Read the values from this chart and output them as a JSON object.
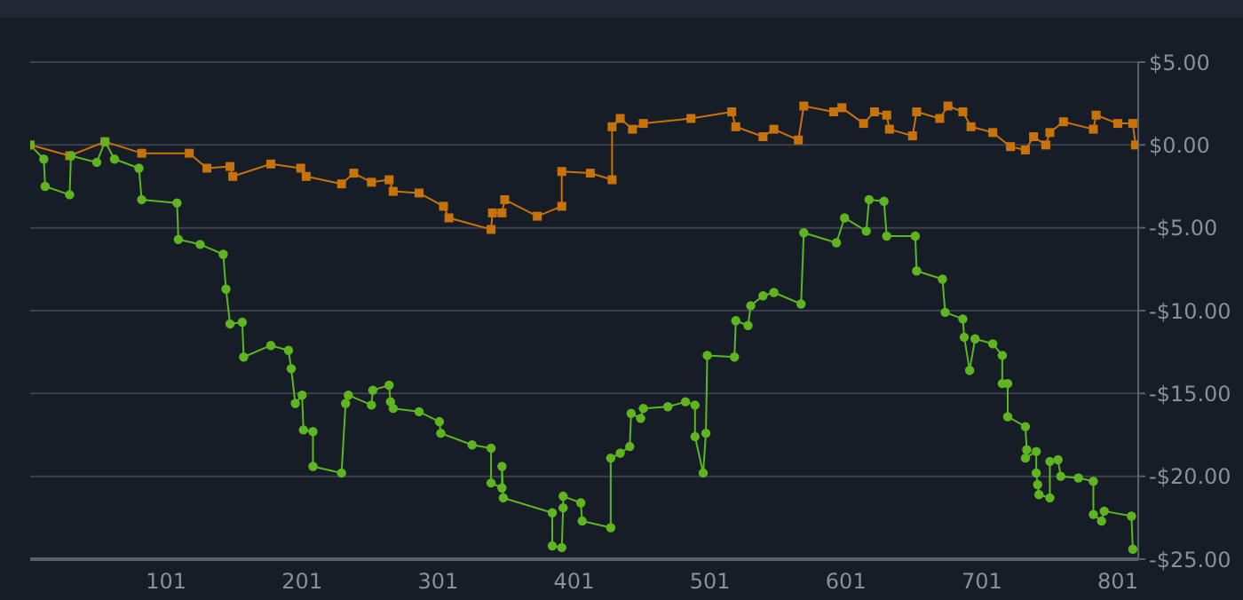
{
  "chart_data": {
    "type": "line",
    "xlim": [
      1,
      816
    ],
    "xticks": [
      101,
      201,
      301,
      401,
      501,
      601,
      701,
      801
    ],
    "ylim": [
      -25,
      5
    ],
    "yticks": [
      {
        "value": 5,
        "label": "$5.00"
      },
      {
        "value": 0,
        "label": "$0.00"
      },
      {
        "value": -5,
        "label": "-$5.00"
      },
      {
        "value": -10,
        "label": "-$10.00"
      },
      {
        "value": -15,
        "label": "-$15.00"
      },
      {
        "value": -20,
        "label": "-$20.00"
      },
      {
        "value": -25,
        "label": "-$25.00"
      }
    ],
    "grid": "y",
    "legend": false,
    "line_style": "solid",
    "series": [
      {
        "color": "#c8720a",
        "marker": "square",
        "x": [
          1,
          30,
          56,
          83,
          118,
          131,
          148,
          150,
          178,
          200,
          204,
          230,
          239,
          252,
          265,
          268,
          287,
          305,
          309,
          340,
          341,
          348,
          350,
          374,
          392,
          392,
          413,
          429,
          429,
          435,
          444,
          452,
          487,
          517,
          520,
          540,
          548,
          566,
          570,
          592,
          598,
          614,
          622,
          631,
          633,
          650,
          653,
          670,
          676,
          687,
          693,
          709,
          722,
          733,
          739,
          748,
          751,
          761,
          783,
          785,
          801,
          812,
          814
        ],
        "values": [
          0,
          -0.65,
          0.2,
          -0.5,
          -0.5,
          -1.4,
          -1.3,
          -1.9,
          -1.15,
          -1.4,
          -1.9,
          -2.35,
          -1.7,
          -2.25,
          -2.1,
          -2.8,
          -2.9,
          -3.7,
          -4.4,
          -5.1,
          -4.1,
          -4.1,
          -3.3,
          -4.3,
          -3.7,
          -1.6,
          -1.7,
          -2.1,
          1.1,
          1.6,
          0.95,
          1.3,
          1.6,
          2,
          1.1,
          0.5,
          0.95,
          0.3,
          2.35,
          2,
          2.25,
          1.3,
          2,
          1.8,
          0.95,
          0.55,
          2,
          1.6,
          2.35,
          2,
          1.1,
          0.75,
          -0.1,
          -0.3,
          0.5,
          0,
          0.75,
          1.4,
          0.95,
          1.8,
          1.3,
          1.3,
          0
        ]
      },
      {
        "color": "#5fb520",
        "marker": "circle",
        "x": [
          1,
          11,
          12,
          30,
          31,
          50,
          56,
          63,
          81,
          83,
          109,
          110,
          126,
          143,
          145,
          148,
          157,
          158,
          178,
          191,
          193,
          196,
          201,
          202,
          209,
          209,
          230,
          233,
          235,
          252,
          253,
          265,
          266,
          268,
          287,
          302,
          303,
          326,
          340,
          340,
          348,
          348,
          349,
          385,
          385,
          392,
          393,
          393,
          406,
          407,
          428,
          428,
          435,
          442,
          443,
          450,
          452,
          470,
          483,
          490,
          490,
          496,
          498,
          499,
          519,
          520,
          529,
          531,
          540,
          548,
          568,
          570,
          594,
          600,
          616,
          618,
          629,
          631,
          652,
          653,
          672,
          674,
          687,
          688,
          692,
          696,
          709,
          716,
          716,
          720,
          720,
          733,
          734,
          733,
          741,
          741,
          742,
          743,
          751,
          751,
          757,
          759,
          772,
          783,
          783,
          789,
          791,
          811,
          812
        ],
        "values": [
          0,
          -0.85,
          -2.5,
          -3,
          -0.65,
          -1.05,
          0.2,
          -0.85,
          -1.4,
          -3.3,
          -3.5,
          -5.7,
          -6,
          -6.6,
          -8.7,
          -10.8,
          -10.7,
          -12.8,
          -12.1,
          -12.4,
          -13.5,
          -15.6,
          -15.1,
          -17.2,
          -17.3,
          -19.4,
          -19.8,
          -15.6,
          -15.1,
          -15.7,
          -14.8,
          -14.5,
          -15.5,
          -15.9,
          -16.1,
          -16.7,
          -17.4,
          -18.1,
          -18.3,
          -20.4,
          -20.7,
          -19.4,
          -21.3,
          -22.2,
          -24.2,
          -24.3,
          -21.9,
          -21.2,
          -21.6,
          -22.7,
          -23.1,
          -18.9,
          -18.6,
          -18.2,
          -16.2,
          -16.5,
          -15.9,
          -15.8,
          -15.5,
          -15.7,
          -17.6,
          -19.8,
          -17.4,
          -12.7,
          -12.8,
          -10.6,
          -10.9,
          -9.7,
          -9.1,
          -8.9,
          -9.6,
          -5.3,
          -5.9,
          -4.4,
          -5.2,
          -3.3,
          -3.4,
          -5.5,
          -5.5,
          -7.6,
          -8.1,
          -10.1,
          -10.5,
          -11.6,
          -13.6,
          -11.7,
          -12,
          -12.7,
          -14.4,
          -14.4,
          -16.4,
          -17,
          -18.4,
          -18.9,
          -18.5,
          -19.8,
          -20.5,
          -21.1,
          -21.3,
          -19.1,
          -19,
          -20,
          -20.1,
          -20.3,
          -22.3,
          -22.7,
          -22.1,
          -22.4,
          -24.4
        ]
      }
    ]
  }
}
